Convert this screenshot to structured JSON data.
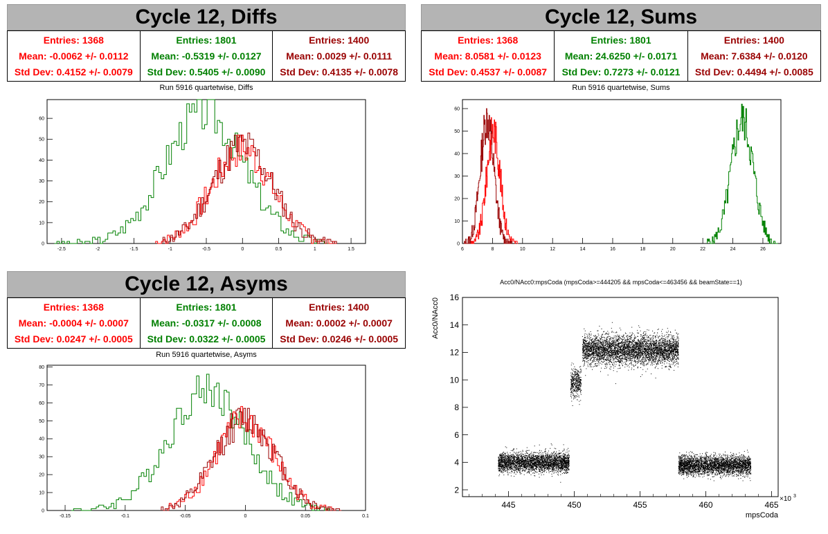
{
  "colors": {
    "red": "#ff0000",
    "green": "#008000",
    "darkred": "#990000"
  },
  "panels": {
    "diffs": {
      "banner": "Cycle 12, Diffs",
      "subtitle": "Run 5916 quartetwise, Diffs",
      "stats": [
        {
          "entries": "Entries: 1368",
          "mean": "Mean: -0.0062 +/- 0.0112",
          "std": "Std Dev: 0.4152 +/- 0.0079",
          "color": "#ff0000"
        },
        {
          "entries": "Entries: 1801",
          "mean": "Mean: -0.5319 +/- 0.0127",
          "std": "Std Dev: 0.5405 +/- 0.0090",
          "color": "#008000"
        },
        {
          "entries": "Entries: 1400",
          "mean": "Mean: 0.0029 +/- 0.0111",
          "std": "Std Dev: 0.4135 +/- 0.0078",
          "color": "#990000"
        }
      ]
    },
    "sums": {
      "banner": "Cycle 12, Sums",
      "subtitle": "Run 5916 quartetwise, Sums",
      "stats": [
        {
          "entries": "Entries: 1368",
          "mean": "Mean: 8.0581 +/- 0.0123",
          "std": "Std Dev: 0.4537 +/- 0.0087",
          "color": "#ff0000"
        },
        {
          "entries": "Entries: 1801",
          "mean": "Mean: 24.6250 +/- 0.0171",
          "std": "Std Dev: 0.7273 +/- 0.0121",
          "color": "#008000"
        },
        {
          "entries": "Entries: 1400",
          "mean": "Mean: 7.6384 +/- 0.0120",
          "std": "Std Dev: 0.4494 +/- 0.0085",
          "color": "#990000"
        }
      ]
    },
    "asyms": {
      "banner": "Cycle 12, Asyms",
      "subtitle": "Run 5916 quartetwise, Asyms",
      "stats": [
        {
          "entries": "Entries: 1368",
          "mean": "Mean: -0.0004 +/- 0.0007",
          "std": "Std Dev: 0.0247 +/- 0.0005",
          "color": "#ff0000"
        },
        {
          "entries": "Entries: 1801",
          "mean": "Mean: -0.0317 +/- 0.0008",
          "std": "Std Dev: 0.0322 +/- 0.0005",
          "color": "#008000"
        },
        {
          "entries": "Entries: 1400",
          "mean": "Mean: 0.0002 +/- 0.0007",
          "std": "Std Dev: 0.0246 +/- 0.0005",
          "color": "#990000"
        }
      ]
    },
    "scatter": {
      "title": "Acc0/NAcc0:mpsCoda (mpsCoda>=444205 && mpsCoda<=463456 && beamState==1)",
      "ylabel": "Acc0/NAcc0",
      "xlabel": "mpsCoda",
      "exponent": "×10"
    }
  },
  "chart_data": [
    {
      "type": "histogram",
      "name": "diffs",
      "xlim": [
        -2.7,
        1.7
      ],
      "ylim": [
        0,
        69
      ],
      "xticks": [
        "-2.5",
        "-2",
        "-1.5",
        "-1",
        "-0.5",
        "0",
        "0.5",
        "1",
        "1.5"
      ],
      "xtick_values": [
        -2.5,
        -2,
        -1.5,
        -1,
        -0.5,
        0,
        0.5,
        1,
        1.5
      ],
      "yticks": [
        "0",
        "10",
        "20",
        "30",
        "40",
        "50",
        "60"
      ],
      "ytick_values": [
        0,
        10,
        20,
        30,
        40,
        50,
        60
      ],
      "series": [
        {
          "color": "#008000",
          "mean": -0.53,
          "sd": 0.54,
          "peak": 63,
          "lo": -2.6,
          "hi": 1.2,
          "seed": 3
        },
        {
          "color": "#ff0000",
          "mean": -0.006,
          "sd": 0.415,
          "peak": 45,
          "lo": -1.2,
          "hi": 1.3,
          "seed": 7
        },
        {
          "color": "#990000",
          "mean": 0.003,
          "sd": 0.41,
          "peak": 47,
          "lo": -1.1,
          "hi": 1.3,
          "seed": 11
        }
      ]
    },
    {
      "type": "histogram",
      "name": "sums",
      "xlim": [
        6,
        27.2
      ],
      "ylim": [
        0,
        64
      ],
      "xticks": [
        "6",
        "8",
        "10",
        "12",
        "14",
        "16",
        "18",
        "20",
        "22",
        "24",
        "26"
      ],
      "xtick_values": [
        6,
        8,
        10,
        12,
        14,
        16,
        18,
        20,
        22,
        24,
        26
      ],
      "yticks": [
        "0",
        "10",
        "20",
        "30",
        "40",
        "50",
        "60"
      ],
      "ytick_values": [
        0,
        10,
        20,
        30,
        40,
        50,
        60
      ],
      "series": [
        {
          "color": "#008000",
          "mean": 24.63,
          "sd": 0.73,
          "peak": 55,
          "lo": 22.3,
          "hi": 27.0,
          "seed": 5
        },
        {
          "color": "#ff0000",
          "mean": 8.06,
          "sd": 0.45,
          "peak": 50,
          "lo": 6.5,
          "hi": 9.7,
          "seed": 9
        },
        {
          "color": "#990000",
          "mean": 7.64,
          "sd": 0.45,
          "peak": 55,
          "lo": 6.1,
          "hi": 9.3,
          "seed": 13
        }
      ]
    },
    {
      "type": "histogram",
      "name": "asyms",
      "xlim": [
        -0.165,
        0.1
      ],
      "ylim": [
        0,
        81
      ],
      "xticks": [
        "-0.15",
        "-0.1",
        "-0.05",
        "0",
        "0.05",
        "0.1"
      ],
      "xtick_values": [
        -0.15,
        -0.1,
        -0.05,
        0,
        0.05,
        0.1
      ],
      "yticks": [
        "0",
        "10",
        "20",
        "30",
        "40",
        "50",
        "60",
        "70",
        "80"
      ],
      "ytick_values": [
        0,
        10,
        20,
        30,
        40,
        50,
        60,
        70,
        80
      ],
      "series": [
        {
          "color": "#008000",
          "mean": -0.0317,
          "sd": 0.032,
          "peak": 68,
          "lo": -0.145,
          "hi": 0.07,
          "seed": 4
        },
        {
          "color": "#ff0000",
          "mean": -0.0004,
          "sd": 0.0247,
          "peak": 50,
          "lo": -0.065,
          "hi": 0.075,
          "seed": 8
        },
        {
          "color": "#990000",
          "mean": 0.0002,
          "sd": 0.0246,
          "peak": 51,
          "lo": -0.07,
          "hi": 0.08,
          "seed": 12
        }
      ]
    },
    {
      "type": "scatter",
      "name": "scatter",
      "xlim": [
        441.5,
        465.5
      ],
      "ylim": [
        1.5,
        16
      ],
      "xticks": [
        "445",
        "450",
        "455",
        "460",
        "465"
      ],
      "xtick_values": [
        445,
        450,
        455,
        460,
        465
      ],
      "yticks": [
        "2",
        "4",
        "6",
        "8",
        "10",
        "12",
        "14",
        "16"
      ],
      "ytick_values": [
        2,
        4,
        6,
        8,
        10,
        12,
        14,
        16
      ],
      "clusters": [
        {
          "x0": 444.2,
          "x1": 449.6,
          "ymean": 4.0,
          "ysd": 0.35,
          "n": 3000
        },
        {
          "x0": 449.7,
          "x1": 450.5,
          "ymean": 9.8,
          "ysd": 0.55,
          "n": 400
        },
        {
          "x0": 450.6,
          "x1": 457.9,
          "ymean": 12.2,
          "ysd": 0.55,
          "n": 4200
        },
        {
          "x0": 457.9,
          "x1": 463.4,
          "ymean": 3.8,
          "ysd": 0.35,
          "n": 3200
        }
      ]
    }
  ]
}
